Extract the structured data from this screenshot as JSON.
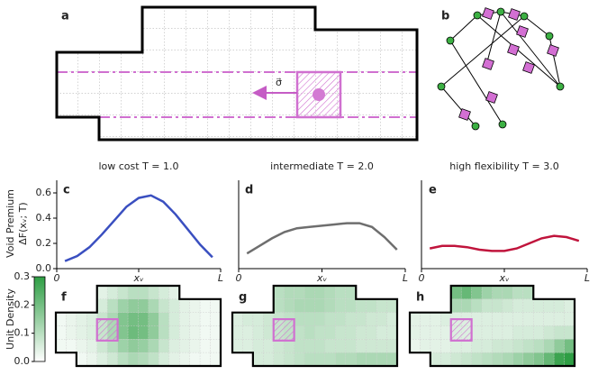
{
  "panel_labels": [
    "a",
    "b",
    "c",
    "d",
    "e",
    "f",
    "g",
    "h"
  ],
  "schematic": {
    "force_label": "σ⃗"
  },
  "chart_data": [
    {
      "type": "line",
      "title": "low cost T = 1.0",
      "color": "#3a4fc0",
      "ylabel": [
        "Void Premium",
        "ΔF(xᵥ; T)"
      ],
      "x": [
        0.05,
        0.125,
        0.2,
        0.275,
        0.35,
        0.425,
        0.5,
        0.575,
        0.65,
        0.725,
        0.8,
        0.875,
        0.95
      ],
      "values": [
        0.06,
        0.1,
        0.17,
        0.27,
        0.38,
        0.49,
        0.56,
        0.58,
        0.53,
        0.43,
        0.31,
        0.19,
        0.09
      ],
      "xlim": [
        0,
        1
      ],
      "xticks": [
        {
          "value": 0,
          "label": "0"
        },
        {
          "value": 0.5,
          "label": "xᵥ"
        },
        {
          "value": 1,
          "label": "L"
        }
      ],
      "ylim": [
        0,
        0.7
      ],
      "yticks": [
        {
          "value": 0,
          "label": "0.0"
        },
        {
          "value": 0.2,
          "label": "0.2"
        },
        {
          "value": 0.4,
          "label": "0.4"
        },
        {
          "value": 0.6,
          "label": "0.6"
        }
      ]
    },
    {
      "type": "line",
      "title": "intermediate T = 2.0",
      "color": "#6e6e6e",
      "x": [
        0.05,
        0.125,
        0.2,
        0.275,
        0.35,
        0.425,
        0.5,
        0.575,
        0.65,
        0.725,
        0.8,
        0.875,
        0.95
      ],
      "values": [
        0.12,
        0.18,
        0.24,
        0.29,
        0.32,
        0.33,
        0.34,
        0.35,
        0.36,
        0.36,
        0.33,
        0.25,
        0.15
      ],
      "xlim": [
        0,
        1
      ],
      "xticks": [
        {
          "value": 0,
          "label": "0"
        },
        {
          "value": 0.5,
          "label": "xᵥ"
        },
        {
          "value": 1,
          "label": "L"
        }
      ],
      "ylim": [
        0,
        0.7
      ]
    },
    {
      "type": "line",
      "title": "high flexibility T = 3.0",
      "color": "#c0143c",
      "x": [
        0.05,
        0.125,
        0.2,
        0.275,
        0.35,
        0.425,
        0.5,
        0.575,
        0.65,
        0.725,
        0.8,
        0.875,
        0.95
      ],
      "values": [
        0.16,
        0.18,
        0.18,
        0.17,
        0.15,
        0.14,
        0.14,
        0.16,
        0.2,
        0.24,
        0.26,
        0.25,
        0.22
      ],
      "xlim": [
        0,
        1
      ],
      "xticks": [
        {
          "value": 0,
          "label": "0"
        },
        {
          "value": 0.5,
          "label": "xᵥ"
        },
        {
          "value": 1,
          "label": "L"
        }
      ],
      "ylim": [
        0,
        0.7
      ]
    },
    {
      "type": "heatmap",
      "color": "#2e9e44",
      "colorbar": {
        "label": "Unit Density",
        "lim": [
          0,
          0.3
        ],
        "ticks": [
          {
            "value": 0,
            "label": "0.0"
          },
          {
            "value": 0.1,
            "label": "0.1"
          },
          {
            "value": 0.2,
            "label": "0.2"
          },
          {
            "value": 0.3,
            "label": "0.3"
          }
        ]
      },
      "values": [
        [
          null,
          null,
          null,
          null,
          0.04,
          0.06,
          0.08,
          0.1,
          0.1,
          0.08,
          0.06,
          0.04,
          null,
          null,
          null,
          null
        ],
        [
          null,
          null,
          null,
          null,
          0.06,
          0.1,
          0.14,
          0.16,
          0.16,
          0.12,
          0.08,
          0.06,
          0.04,
          0.03,
          0.02,
          0.02
        ],
        [
          0.02,
          0.03,
          0.04,
          0.05,
          0.08,
          0.12,
          0.18,
          0.2,
          0.2,
          0.16,
          0.1,
          0.06,
          0.04,
          0.03,
          0.02,
          0.02
        ],
        [
          0.02,
          0.03,
          0.04,
          0.05,
          0.08,
          0.12,
          0.18,
          0.21,
          0.2,
          0.16,
          0.1,
          0.06,
          0.04,
          0.03,
          0.02,
          0.02
        ],
        [
          0.02,
          0.02,
          0.03,
          0.04,
          0.07,
          0.1,
          0.14,
          0.16,
          0.15,
          0.12,
          0.08,
          0.05,
          0.04,
          0.03,
          0.02,
          0.02
        ],
        [
          null,
          null,
          0.02,
          0.03,
          0.05,
          0.07,
          0.1,
          0.12,
          0.11,
          0.09,
          0.06,
          0.04,
          0.03,
          0.02,
          0.02,
          0.02
        ]
      ]
    },
    {
      "type": "heatmap",
      "color": "#2e9e44",
      "values": [
        [
          null,
          null,
          null,
          null,
          0.1,
          0.11,
          0.11,
          0.12,
          0.12,
          0.11,
          0.1,
          0.1,
          null,
          null,
          null,
          null
        ],
        [
          null,
          null,
          null,
          null,
          0.1,
          0.11,
          0.12,
          0.12,
          0.12,
          0.11,
          0.1,
          0.1,
          0.09,
          0.09,
          0.08,
          0.08
        ],
        [
          0.05,
          0.06,
          0.06,
          0.07,
          0.08,
          0.09,
          0.1,
          0.1,
          0.1,
          0.09,
          0.09,
          0.08,
          0.08,
          0.07,
          0.07,
          0.06
        ],
        [
          0.05,
          0.05,
          0.06,
          0.07,
          0.08,
          0.09,
          0.09,
          0.1,
          0.09,
          0.09,
          0.08,
          0.08,
          0.07,
          0.07,
          0.06,
          0.06
        ],
        [
          0.05,
          0.05,
          0.06,
          0.06,
          0.07,
          0.08,
          0.09,
          0.09,
          0.09,
          0.08,
          0.08,
          0.08,
          0.07,
          0.07,
          0.07,
          0.07
        ],
        [
          null,
          null,
          0.06,
          0.06,
          0.07,
          0.08,
          0.09,
          0.1,
          0.1,
          0.1,
          0.11,
          0.11,
          0.12,
          0.12,
          0.12,
          0.12
        ]
      ]
    },
    {
      "type": "heatmap",
      "color": "#2e9e44",
      "values": [
        [
          null,
          null,
          null,
          null,
          0.2,
          0.22,
          0.18,
          0.14,
          0.12,
          0.12,
          0.1,
          0.1,
          null,
          null,
          null,
          null
        ],
        [
          null,
          null,
          null,
          null,
          0.12,
          0.12,
          0.1,
          0.08,
          0.08,
          0.07,
          0.06,
          0.06,
          0.06,
          0.06,
          0.06,
          0.05
        ],
        [
          0.04,
          0.04,
          0.04,
          0.05,
          0.05,
          0.05,
          0.05,
          0.05,
          0.05,
          0.05,
          0.05,
          0.05,
          0.05,
          0.05,
          0.05,
          0.05
        ],
        [
          0.04,
          0.04,
          0.04,
          0.04,
          0.05,
          0.05,
          0.05,
          0.05,
          0.05,
          0.05,
          0.06,
          0.06,
          0.06,
          0.07,
          0.08,
          0.08
        ],
        [
          0.03,
          0.04,
          0.04,
          0.04,
          0.05,
          0.05,
          0.06,
          0.06,
          0.07,
          0.07,
          0.08,
          0.09,
          0.1,
          0.12,
          0.16,
          0.2
        ],
        [
          null,
          null,
          0.06,
          0.06,
          0.07,
          0.08,
          0.09,
          0.1,
          0.11,
          0.12,
          0.14,
          0.16,
          0.18,
          0.22,
          0.28,
          0.3
        ]
      ]
    }
  ]
}
